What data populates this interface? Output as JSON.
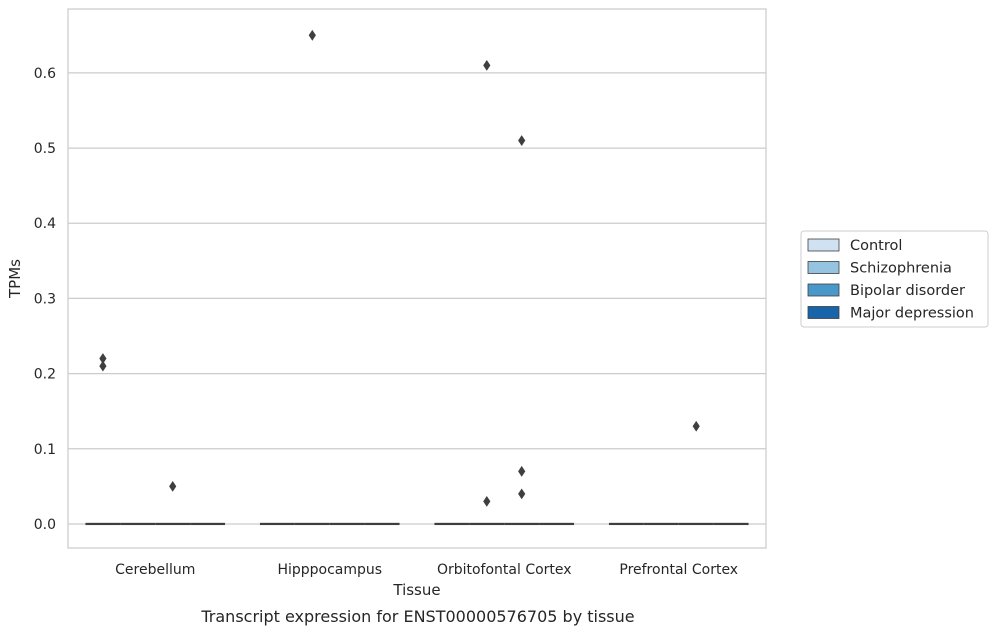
{
  "chart_data": {
    "type": "box",
    "xlabel": "Tissue",
    "ylabel": "TPMs",
    "caption": "Transcript expression for ENST00000576705 by tissue",
    "categories": [
      "Cerebellum",
      "Hipppocampus",
      "Orbitofontal Cortex",
      "Prefrontal Cortex"
    ],
    "ylim": [
      -0.032,
      0.685
    ],
    "yticks": [
      0.0,
      0.1,
      0.2,
      0.3,
      0.4,
      0.5,
      0.6
    ],
    "ytick_labels": [
      "0.0",
      "0.1",
      "0.2",
      "0.3",
      "0.4",
      "0.5",
      "0.6"
    ],
    "grid": true,
    "legend_position": "right",
    "series": [
      {
        "name": "Control",
        "color": "#d0e1f2",
        "median": 0.0,
        "q1": 0.0,
        "q3": 0.0,
        "outliers": {
          "Cerebellum": [
            0.22,
            0.21
          ],
          "Hipppocampus": [],
          "Orbitofontal Cortex": [],
          "Prefrontal Cortex": []
        }
      },
      {
        "name": "Schizophrenia",
        "color": "#94c4df",
        "median": 0.0,
        "q1": 0.0,
        "q3": 0.0,
        "outliers": {
          "Cerebellum": [],
          "Hipppocampus": [
            0.65
          ],
          "Orbitofontal Cortex": [
            0.61,
            0.03
          ],
          "Prefrontal Cortex": []
        }
      },
      {
        "name": "Bipolar disorder",
        "color": "#4a98c9",
        "median": 0.0,
        "q1": 0.0,
        "q3": 0.0,
        "outliers": {
          "Cerebellum": [
            0.05
          ],
          "Hipppocampus": [],
          "Orbitofontal Cortex": [
            0.51,
            0.07,
            0.04
          ],
          "Prefrontal Cortex": [
            0.13
          ]
        }
      },
      {
        "name": "Major depression",
        "color": "#1764ab",
        "median": 0.0,
        "q1": 0.0,
        "q3": 0.0,
        "outliers": {
          "Cerebellum": [],
          "Hipppocampus": [],
          "Orbitofontal Cortex": [],
          "Prefrontal Cortex": []
        }
      }
    ]
  }
}
